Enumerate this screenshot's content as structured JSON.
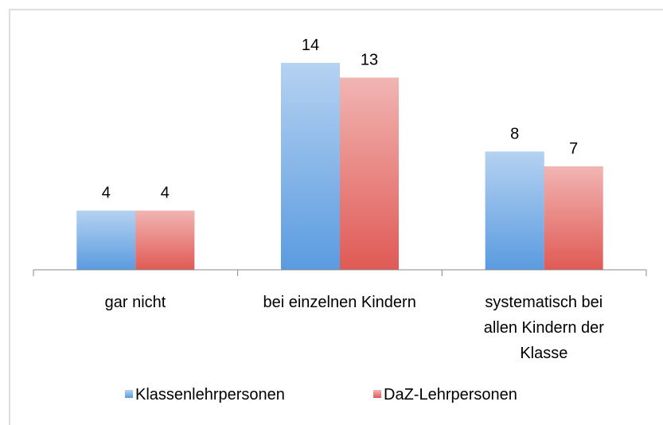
{
  "chart_data": {
    "type": "bar",
    "categories": [
      "gar nicht",
      "bei einzelnen Kindern",
      "systematisch bei\nallen Kindern der\nKlasse"
    ],
    "series": [
      {
        "name": "Klassenlehrpersonen",
        "color": "#5a9be0",
        "values": [
          4,
          14,
          8
        ]
      },
      {
        "name": "DaZ-Lehrpersonen",
        "color": "#e05a55",
        "values": [
          4,
          13,
          7
        ]
      }
    ],
    "legend": "bottom"
  }
}
